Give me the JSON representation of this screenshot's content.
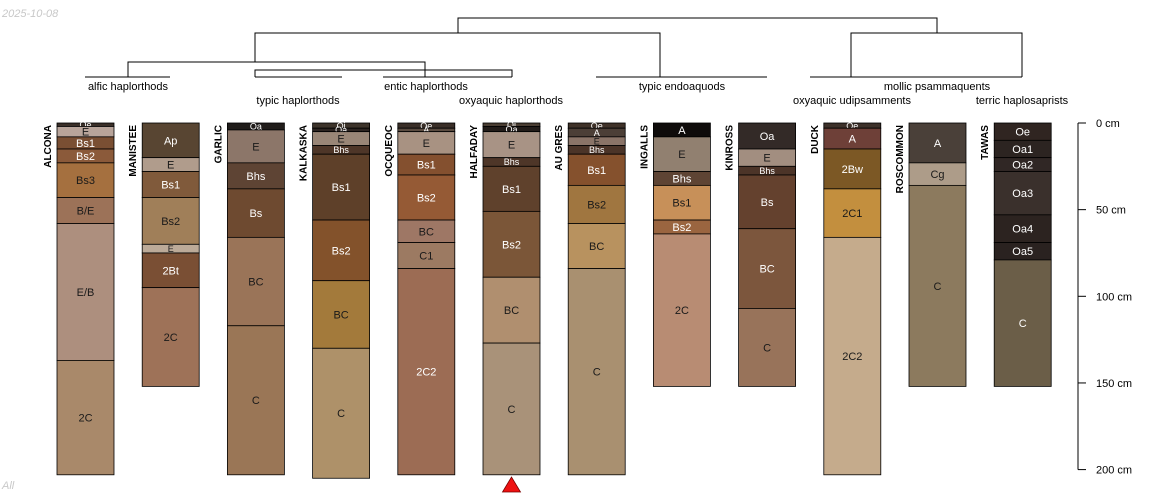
{
  "date_stamp": "2025-10-08",
  "footer_label": "All",
  "depth_axis": {
    "unit": "cm",
    "ticks": [
      {
        "depth": 0,
        "label": "0 cm"
      },
      {
        "depth": 50,
        "label": "50 cm"
      },
      {
        "depth": 100,
        "label": "100 cm"
      },
      {
        "depth": 150,
        "label": "150 cm"
      },
      {
        "depth": 200,
        "label": "200 cm"
      }
    ]
  },
  "taxa": [
    "alfic haplorthods",
    "typic haplorthods",
    "entic haplorthods",
    "oxyaquic haplorthods",
    "typic endoaquods",
    "oxyaquic udipsamments",
    "mollic psammaquents",
    "terric haplosaprists"
  ],
  "profiles": [
    {
      "name": "ALCONA",
      "horizons": [
        {
          "name": "Oe",
          "top": 0,
          "bottom": 2,
          "color": "#3a2f28"
        },
        {
          "name": "E",
          "top": 2,
          "bottom": 8,
          "color": "#b8a49a"
        },
        {
          "name": "Bs1",
          "top": 8,
          "bottom": 15,
          "color": "#7a4f33"
        },
        {
          "name": "Bs2",
          "top": 15,
          "bottom": 23,
          "color": "#8b5a3a"
        },
        {
          "name": "Bs3",
          "top": 23,
          "bottom": 43,
          "color": "#a5703f"
        },
        {
          "name": "B/E",
          "top": 43,
          "bottom": 58,
          "color": "#9c7258"
        },
        {
          "name": "E/B",
          "top": 58,
          "bottom": 137,
          "color": "#ad8f7e"
        },
        {
          "name": "2C",
          "top": 137,
          "bottom": 203,
          "color": "#a9896a"
        }
      ]
    },
    {
      "name": "MANISTEE",
      "horizons": [
        {
          "name": "Ap",
          "top": 0,
          "bottom": 20,
          "color": "#584532"
        },
        {
          "name": "E",
          "top": 20,
          "bottom": 28,
          "color": "#b09c8c"
        },
        {
          "name": "Bs1",
          "top": 28,
          "bottom": 43,
          "color": "#805a3b"
        },
        {
          "name": "Bs2",
          "top": 43,
          "bottom": 70,
          "color": "#a07f59"
        },
        {
          "name": "E",
          "top": 70,
          "bottom": 75,
          "color": "#bcaa98"
        },
        {
          "name": "2Bt",
          "top": 75,
          "bottom": 95,
          "color": "#7a4f34"
        },
        {
          "name": "2C",
          "top": 95,
          "bottom": 152,
          "color": "#9e7258"
        }
      ]
    },
    {
      "name": "GARLIC",
      "horizons": [
        {
          "name": "Oa",
          "top": 0,
          "bottom": 4,
          "color": "#201c1a"
        },
        {
          "name": "E",
          "top": 4,
          "bottom": 23,
          "color": "#8c7669"
        },
        {
          "name": "Bhs",
          "top": 23,
          "bottom": 38,
          "color": "#5e4434"
        },
        {
          "name": "Bs",
          "top": 38,
          "bottom": 66,
          "color": "#6e4a30"
        },
        {
          "name": "BC",
          "top": 66,
          "bottom": 117,
          "color": "#9a7458"
        },
        {
          "name": "C",
          "top": 117,
          "bottom": 203,
          "color": "#9a7656"
        }
      ]
    },
    {
      "name": "KALKASKA",
      "horizons": [
        {
          "name": "Oi",
          "top": 0,
          "bottom": 3,
          "color": "#3d342b"
        },
        {
          "name": "Oa",
          "top": 3,
          "bottom": 5,
          "color": "#2b2320"
        },
        {
          "name": "E",
          "top": 5,
          "bottom": 13,
          "color": "#998677"
        },
        {
          "name": "Bhs",
          "top": 13,
          "bottom": 18,
          "color": "#4e3628"
        },
        {
          "name": "Bs1",
          "top": 18,
          "bottom": 56,
          "color": "#5e4029"
        },
        {
          "name": "Bs2",
          "top": 56,
          "bottom": 91,
          "color": "#83522b"
        },
        {
          "name": "BC",
          "top": 91,
          "bottom": 130,
          "color": "#a37a3b"
        },
        {
          "name": "C",
          "top": 130,
          "bottom": 205,
          "color": "#ae9169"
        }
      ]
    },
    {
      "name": "OCQUEOC",
      "horizons": [
        {
          "name": "Oe",
          "top": 0,
          "bottom": 3,
          "color": "#3a2f28"
        },
        {
          "name": "A",
          "top": 3,
          "bottom": 5,
          "color": "#5a4b40"
        },
        {
          "name": "E",
          "top": 5,
          "bottom": 18,
          "color": "#a89282"
        },
        {
          "name": "Bs1",
          "top": 18,
          "bottom": 30,
          "color": "#84502f"
        },
        {
          "name": "Bs2",
          "top": 30,
          "bottom": 56,
          "color": "#955a35"
        },
        {
          "name": "BC",
          "top": 56,
          "bottom": 69,
          "color": "#9e7765"
        },
        {
          "name": "C1",
          "top": 69,
          "bottom": 84,
          "color": "#9c7a62"
        },
        {
          "name": "2C2",
          "top": 84,
          "bottom": 203,
          "color": "#9c6c54"
        }
      ]
    },
    {
      "name": "HALFADAY",
      "horizons": [
        {
          "name": "Oi",
          "top": 0,
          "bottom": 2,
          "color": "#4a3e33"
        },
        {
          "name": "Oa",
          "top": 2,
          "bottom": 5,
          "color": "#221c19"
        },
        {
          "name": "E",
          "top": 5,
          "bottom": 20,
          "color": "#a89385"
        },
        {
          "name": "Bhs",
          "top": 20,
          "bottom": 25,
          "color": "#4e3628"
        },
        {
          "name": "Bs1",
          "top": 25,
          "bottom": 51,
          "color": "#5f412c"
        },
        {
          "name": "Bs2",
          "top": 51,
          "bottom": 89,
          "color": "#7b5638"
        },
        {
          "name": "BC",
          "top": 89,
          "bottom": 127,
          "color": "#b08f6f"
        },
        {
          "name": "C",
          "top": 127,
          "bottom": 203,
          "color": "#a99279"
        }
      ]
    },
    {
      "name": "AU GRES",
      "horizons": [
        {
          "name": "Oe",
          "top": 0,
          "bottom": 3,
          "color": "#3f3229"
        },
        {
          "name": "A",
          "top": 3,
          "bottom": 8,
          "color": "#4c3f37"
        },
        {
          "name": "E",
          "top": 8,
          "bottom": 13,
          "color": "#8a7468"
        },
        {
          "name": "Bhs",
          "top": 13,
          "bottom": 18,
          "color": "#4b3428"
        },
        {
          "name": "Bs1",
          "top": 18,
          "bottom": 36,
          "color": "#85512d"
        },
        {
          "name": "Bs2",
          "top": 36,
          "bottom": 58,
          "color": "#a07640"
        },
        {
          "name": "BC",
          "top": 58,
          "bottom": 84,
          "color": "#b8925f"
        },
        {
          "name": "C",
          "top": 84,
          "bottom": 203,
          "color": "#a99070"
        }
      ]
    },
    {
      "name": "INGALLS",
      "horizons": [
        {
          "name": "A",
          "top": 0,
          "bottom": 8,
          "color": "#0f0c0b"
        },
        {
          "name": "E",
          "top": 8,
          "bottom": 28,
          "color": "#918070"
        },
        {
          "name": "Bhs",
          "top": 28,
          "bottom": 36,
          "color": "#5e4434"
        },
        {
          "name": "Bs1",
          "top": 36,
          "bottom": 56,
          "color": "#c79059"
        },
        {
          "name": "Bs2",
          "top": 56,
          "bottom": 64,
          "color": "#9a6540"
        },
        {
          "name": "2C",
          "top": 64,
          "bottom": 152,
          "color": "#b88c73"
        }
      ]
    },
    {
      "name": "KINROSS",
      "horizons": [
        {
          "name": "Oa",
          "top": 0,
          "bottom": 15,
          "color": "#332a27"
        },
        {
          "name": "E",
          "top": 15,
          "bottom": 25,
          "color": "#a28e80"
        },
        {
          "name": "Bhs",
          "top": 25,
          "bottom": 30,
          "color": "#4c3428"
        },
        {
          "name": "Bs",
          "top": 30,
          "bottom": 61,
          "color": "#64412e"
        },
        {
          "name": "BC",
          "top": 61,
          "bottom": 107,
          "color": "#7c563d"
        },
        {
          "name": "C",
          "top": 107,
          "bottom": 152,
          "color": "#98735a"
        }
      ]
    },
    {
      "name": "DUCK",
      "horizons": [
        {
          "name": "Oe",
          "top": 0,
          "bottom": 3,
          "color": "#3d312a"
        },
        {
          "name": "A",
          "top": 3,
          "bottom": 15,
          "color": "#6e4038"
        },
        {
          "name": "2Bw",
          "top": 15,
          "bottom": 38,
          "color": "#7c5825"
        },
        {
          "name": "2C1",
          "top": 38,
          "bottom": 66,
          "color": "#c38f3e"
        },
        {
          "name": "2C2",
          "top": 66,
          "bottom": 203,
          "color": "#c5ab8c"
        }
      ]
    },
    {
      "name": "ROSCOMMON",
      "horizons": [
        {
          "name": "A",
          "top": 0,
          "bottom": 23,
          "color": "#4a4039"
        },
        {
          "name": "Cg",
          "top": 23,
          "bottom": 36,
          "color": "#ad9c89"
        },
        {
          "name": "C",
          "top": 36,
          "bottom": 152,
          "color": "#8c7a5e"
        }
      ]
    },
    {
      "name": "TAWAS",
      "horizons": [
        {
          "name": "Oe",
          "top": 0,
          "bottom": 10,
          "color": "#302521"
        },
        {
          "name": "Oa1",
          "top": 10,
          "bottom": 20,
          "color": "#2c2421"
        },
        {
          "name": "Oa2",
          "top": 20,
          "bottom": 28,
          "color": "#302725"
        },
        {
          "name": "Oa3",
          "top": 28,
          "bottom": 53,
          "color": "#3a302c"
        },
        {
          "name": "Oa4",
          "top": 53,
          "bottom": 69,
          "color": "#2c2320"
        },
        {
          "name": "Oa5",
          "top": 69,
          "bottom": 79,
          "color": "#2a2220"
        },
        {
          "name": "C",
          "top": 79,
          "bottom": 152,
          "color": "#6b5e48"
        }
      ]
    }
  ],
  "highlight_marker": {
    "profile": "HALFADAY",
    "color": "#ee1111"
  }
}
